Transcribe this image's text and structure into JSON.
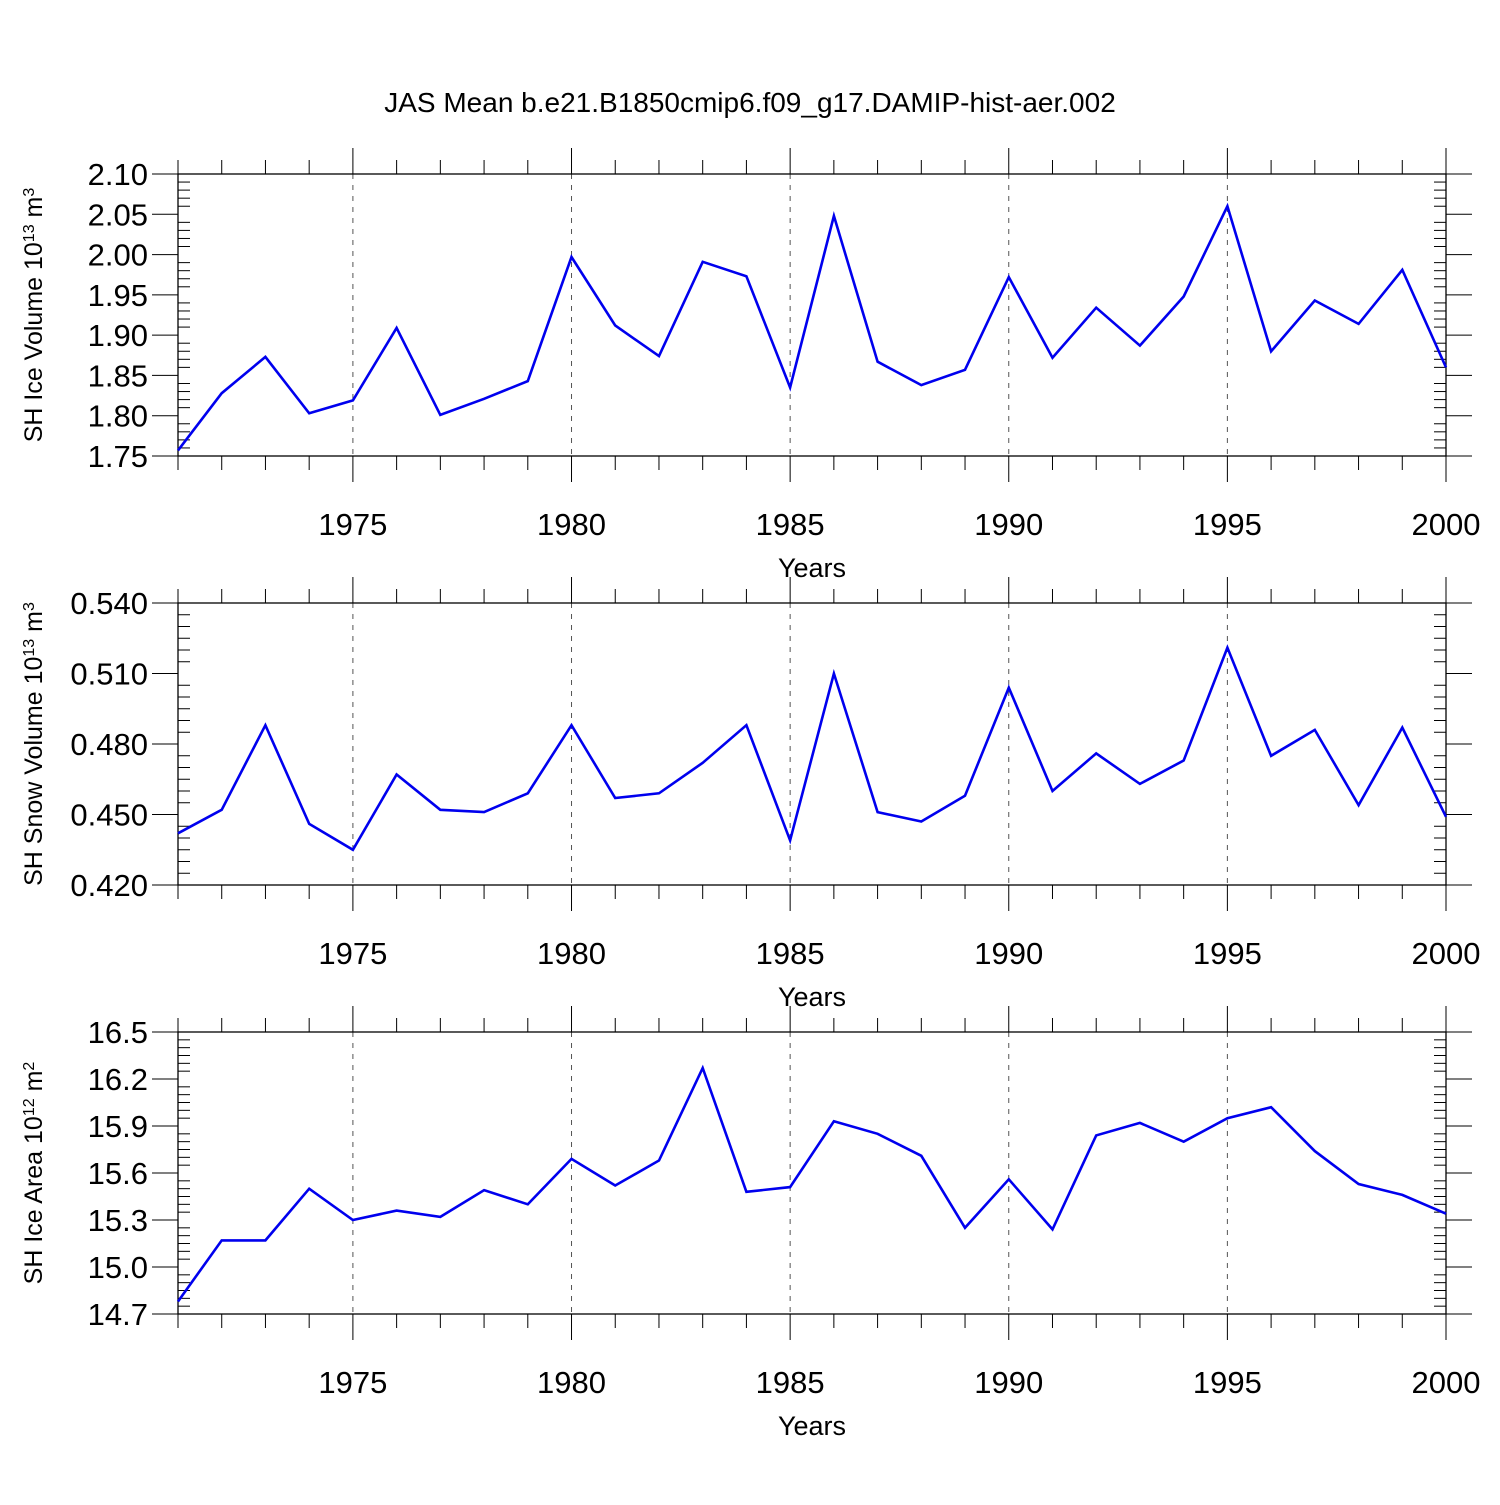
{
  "title": "JAS Mean b.e21.B1850cmip6.f09_g17.DAMIP-hist-aer.002",
  "chart_data": [
    {
      "type": "line",
      "title": "",
      "xlabel": "Years",
      "ylabel": {
        "base": "SH Ice Volume 10",
        "exp": "13",
        "unit": " m",
        "unit_exp": "3"
      },
      "xlim": [
        1971,
        2000
      ],
      "ylim": [
        1.75,
        2.1
      ],
      "xticks": [
        1975,
        1980,
        1985,
        1990,
        1995,
        2000
      ],
      "xtick_labels": [
        "1975",
        "1980",
        "1985",
        "1990",
        "1995",
        "2000"
      ],
      "yticks": [
        1.75,
        1.8,
        1.85,
        1.9,
        1.95,
        2.0,
        2.05,
        2.1
      ],
      "ytick_labels": [
        "1.75",
        "1.80",
        "1.85",
        "1.90",
        "1.95",
        "2.00",
        "2.05",
        "2.10"
      ],
      "grid": "vertical dashed at major x ticks",
      "series": [
        {
          "color": "#0000ee",
          "x": [
            1971,
            1972,
            1973,
            1974,
            1975,
            1976,
            1977,
            1978,
            1979,
            1980,
            1981,
            1982,
            1983,
            1984,
            1985,
            1986,
            1987,
            1988,
            1989,
            1990,
            1991,
            1992,
            1993,
            1994,
            1995,
            1996,
            1997,
            1998,
            1999,
            2000
          ],
          "y": [
            1.757,
            1.828,
            1.873,
            1.803,
            1.819,
            1.909,
            1.801,
            1.821,
            1.843,
            1.997,
            1.912,
            1.874,
            1.991,
            1.973,
            1.835,
            2.048,
            1.867,
            1.838,
            1.857,
            1.972,
            1.872,
            1.934,
            1.887,
            1.948,
            2.06,
            1.88,
            1.943,
            1.914,
            1.981,
            1.86
          ]
        }
      ]
    },
    {
      "type": "line",
      "title": "",
      "xlabel": "Years",
      "ylabel": {
        "base": "SH Snow Volume 10",
        "exp": "13",
        "unit": " m",
        "unit_exp": "3"
      },
      "xlim": [
        1971,
        2000
      ],
      "ylim": [
        0.42,
        0.54
      ],
      "xticks": [
        1975,
        1980,
        1985,
        1990,
        1995,
        2000
      ],
      "xtick_labels": [
        "1975",
        "1980",
        "1985",
        "1990",
        "1995",
        "2000"
      ],
      "yticks": [
        0.42,
        0.45,
        0.48,
        0.51,
        0.54
      ],
      "ytick_labels": [
        "0.420",
        "0.450",
        "0.480",
        "0.510",
        "0.540"
      ],
      "grid": "vertical dashed at major x ticks",
      "series": [
        {
          "color": "#0000ee",
          "x": [
            1971,
            1972,
            1973,
            1974,
            1975,
            1976,
            1977,
            1978,
            1979,
            1980,
            1981,
            1982,
            1983,
            1984,
            1985,
            1986,
            1987,
            1988,
            1989,
            1990,
            1991,
            1992,
            1993,
            1994,
            1995,
            1996,
            1997,
            1998,
            1999,
            2000
          ],
          "y": [
            0.442,
            0.452,
            0.488,
            0.446,
            0.435,
            0.467,
            0.452,
            0.451,
            0.459,
            0.488,
            0.457,
            0.459,
            0.472,
            0.488,
            0.439,
            0.51,
            0.451,
            0.447,
            0.458,
            0.504,
            0.46,
            0.476,
            0.463,
            0.473,
            0.521,
            0.475,
            0.486,
            0.454,
            0.487,
            0.449
          ]
        }
      ]
    },
    {
      "type": "line",
      "title": "",
      "xlabel": "Years",
      "ylabel": {
        "base": "SH Ice Area 10",
        "exp": "12",
        "unit": " m",
        "unit_exp": "2"
      },
      "xlim": [
        1971,
        2000
      ],
      "ylim": [
        14.7,
        16.5
      ],
      "xticks": [
        1975,
        1980,
        1985,
        1990,
        1995,
        2000
      ],
      "xtick_labels": [
        "1975",
        "1980",
        "1985",
        "1990",
        "1995",
        "2000"
      ],
      "yticks": [
        14.7,
        15.0,
        15.3,
        15.6,
        15.9,
        16.2,
        16.5
      ],
      "ytick_labels": [
        "14.7",
        "15.0",
        "15.3",
        "15.6",
        "15.9",
        "16.2",
        "16.5"
      ],
      "grid": "vertical dashed at major x ticks",
      "series": [
        {
          "color": "#0000ee",
          "x": [
            1971,
            1972,
            1973,
            1974,
            1975,
            1976,
            1977,
            1978,
            1979,
            1980,
            1981,
            1982,
            1983,
            1984,
            1985,
            1986,
            1987,
            1988,
            1989,
            1990,
            1991,
            1992,
            1993,
            1994,
            1995,
            1996,
            1997,
            1998,
            1999,
            2000
          ],
          "y": [
            14.78,
            15.17,
            15.17,
            15.5,
            15.3,
            15.36,
            15.32,
            15.49,
            15.4,
            15.69,
            15.52,
            15.68,
            16.27,
            15.48,
            15.51,
            15.93,
            15.85,
            15.71,
            15.25,
            15.56,
            15.24,
            15.84,
            15.92,
            15.8,
            15.95,
            16.02,
            15.74,
            15.53,
            15.46,
            15.34
          ]
        }
      ]
    }
  ]
}
